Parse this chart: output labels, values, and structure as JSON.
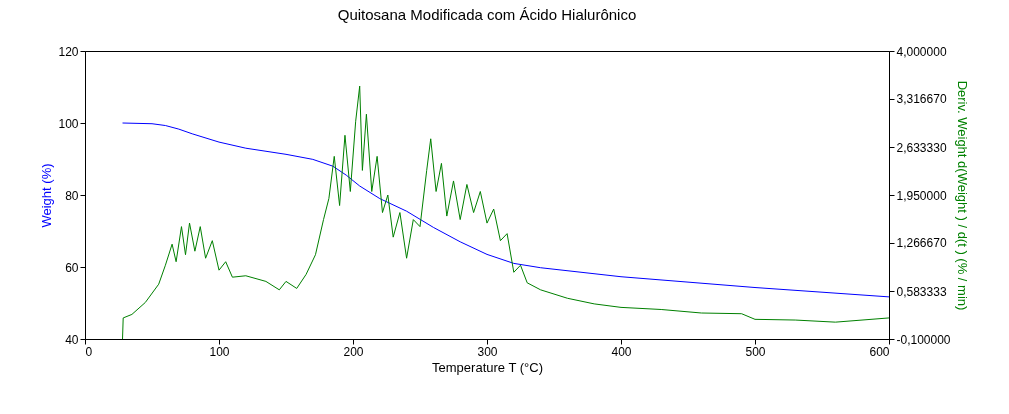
{
  "chart_data": {
    "type": "line",
    "title": "Quitosana Modificada com Ácido Hialurônico",
    "xlabel": "Temperature T (°C)",
    "ylabel": "Weight  (%)",
    "y2label": "Deriv. Weight d(Weight ) / d(t ) (% / min)",
    "xlim": [
      0,
      600
    ],
    "xticks": [
      0,
      100,
      200,
      300,
      400,
      500,
      600
    ],
    "ylim": [
      40,
      120
    ],
    "yticks": [
      40,
      60,
      80,
      100,
      120
    ],
    "y2lim": [
      -0.1,
      4.0
    ],
    "y2ticks": [
      {
        "value": -0.1,
        "label": "-0,100000"
      },
      {
        "value": 0.583333,
        "label": "0,583333"
      },
      {
        "value": 1.26667,
        "label": "1,266670"
      },
      {
        "value": 1.95,
        "label": "1,950000"
      },
      {
        "value": 2.63333,
        "label": "2,633330"
      },
      {
        "value": 3.31667,
        "label": "3,316670"
      },
      {
        "value": 4.0,
        "label": "4,000000"
      }
    ],
    "grid": false,
    "marker": "none",
    "line_style": "solid",
    "series": [
      {
        "color": "#0000ff",
        "x": [
          28,
          50,
          60,
          70,
          80,
          100,
          120,
          150,
          170,
          185,
          195,
          205,
          220,
          240,
          260,
          280,
          300,
          320,
          340,
          400,
          450,
          500,
          550,
          600
        ],
        "values": [
          100,
          99.8,
          99.3,
          98.3,
          97,
          94.7,
          93,
          91.3,
          89.9,
          88,
          85.5,
          82.5,
          79,
          75.5,
          71,
          67,
          63.5,
          61,
          59.8,
          57.3,
          55.8,
          54.3,
          53,
          51.7
        ]
      },
      {
        "color": "#008000",
        "axis": "y2",
        "x": [
          28,
          28.5,
          35,
          45,
          55,
          60,
          65,
          68,
          72,
          75,
          78,
          82,
          86,
          90,
          95,
          100,
          105,
          110,
          120,
          135,
          145,
          150,
          158,
          165,
          172,
          178,
          182,
          186,
          190,
          194,
          198,
          202,
          205,
          207,
          210,
          214,
          218,
          222,
          226,
          230,
          235,
          240,
          245,
          250,
          255,
          258,
          262,
          266,
          270,
          275,
          280,
          285,
          290,
          295,
          300,
          305,
          310,
          315,
          320,
          325,
          330,
          340,
          360,
          380,
          400,
          430,
          460,
          490,
          500,
          530,
          560,
          600
        ],
        "values": [
          -0.1,
          0.2,
          0.25,
          0.42,
          0.68,
          0.95,
          1.25,
          1.0,
          1.5,
          1.1,
          1.55,
          1.15,
          1.5,
          1.05,
          1.3,
          0.88,
          1.0,
          0.78,
          0.8,
          0.72,
          0.6,
          0.72,
          0.62,
          0.82,
          1.1,
          1.6,
          1.9,
          2.5,
          1.8,
          2.8,
          2.0,
          3.0,
          3.5,
          2.3,
          3.1,
          2.0,
          2.5,
          1.7,
          1.95,
          1.35,
          1.7,
          1.05,
          1.6,
          1.5,
          2.3,
          2.75,
          2.0,
          2.4,
          1.65,
          2.15,
          1.6,
          2.1,
          1.7,
          2.0,
          1.55,
          1.75,
          1.3,
          1.4,
          0.85,
          0.95,
          0.7,
          0.6,
          0.48,
          0.4,
          0.35,
          0.32,
          0.27,
          0.26,
          0.18,
          0.17,
          0.14,
          0.2
        ]
      }
    ]
  }
}
